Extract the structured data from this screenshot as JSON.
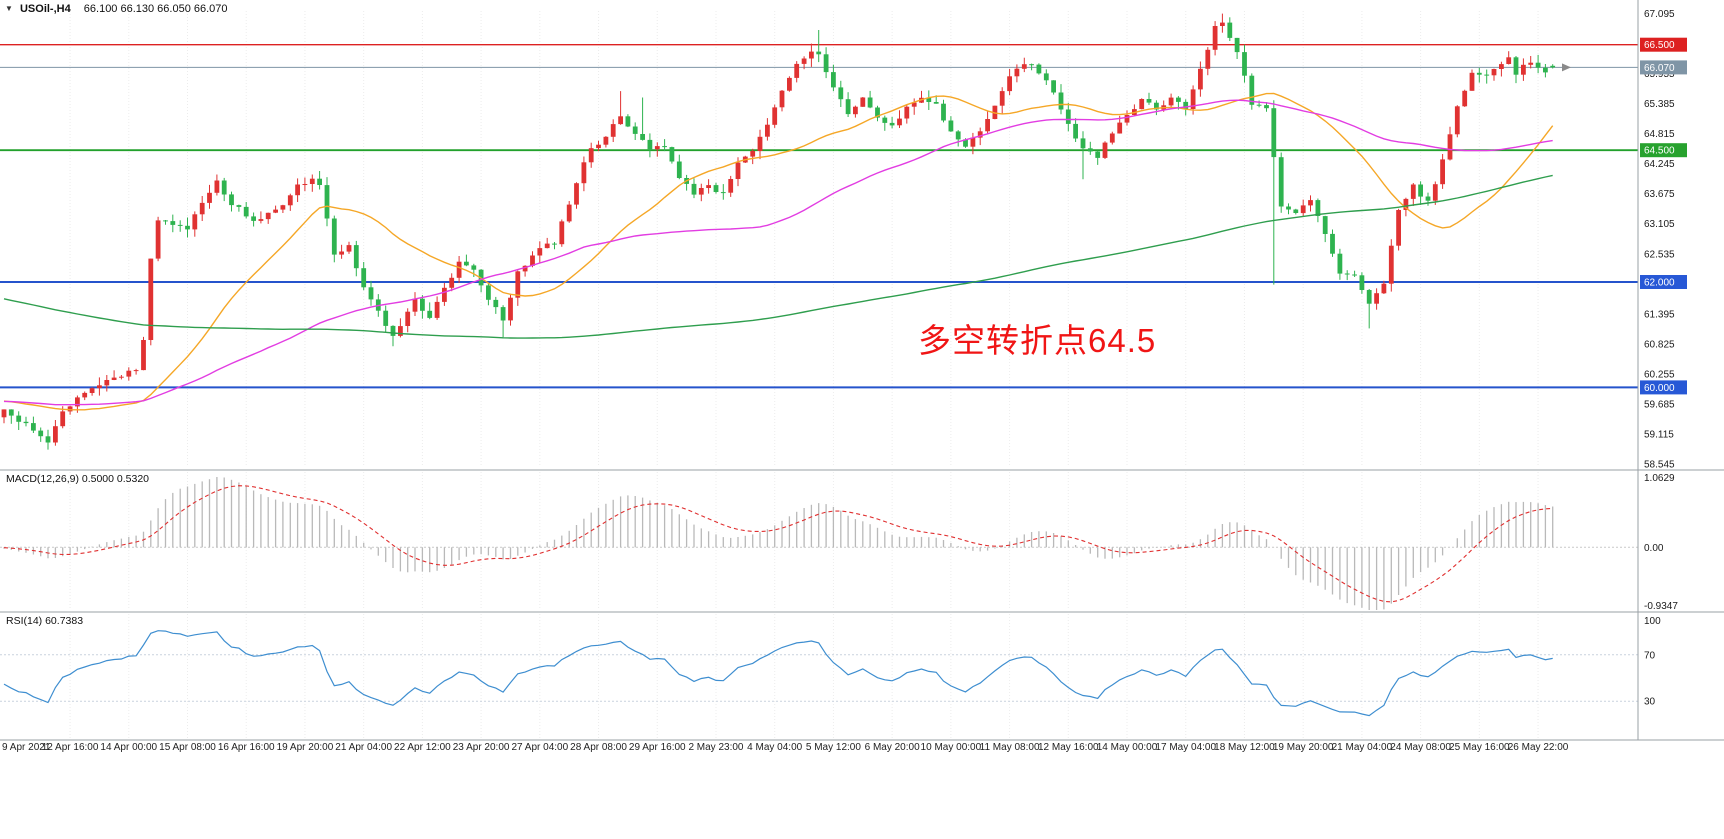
{
  "header": {
    "collapse_icon": "▼",
    "symbol": "USOil-,H4",
    "ohlc": "66.100 66.130 66.050 66.070"
  },
  "annotation": {
    "text": "多空转折点64.5",
    "color": "#f01515"
  },
  "panels": {
    "macd": {
      "title": "MACD(12,26,9) 0.5000 0.5320",
      "axis_labels": [
        "1.0629",
        "0.00",
        "-0.9347"
      ]
    },
    "rsi": {
      "title": "RSI(14) 60.7383",
      "axis_labels": [
        "100",
        "70",
        "30"
      ]
    }
  },
  "price_axis": {
    "tick_values": [
      67.095,
      66.525,
      65.955,
      65.385,
      64.815,
      64.245,
      63.675,
      63.105,
      62.535,
      61.965,
      61.395,
      60.825,
      60.255,
      59.685,
      59.115,
      58.545
    ],
    "special_labels": [
      {
        "label": "66.500",
        "value": 66.5,
        "bg": "#dd2121",
        "fg": "#ffffff"
      },
      {
        "label": "66.070",
        "value": 66.07,
        "bg": "#7f95a6",
        "fg": "#ffffff"
      },
      {
        "label": "64.500",
        "value": 64.5,
        "bg": "#27a22e",
        "fg": "#ffffff"
      },
      {
        "label": "62.000",
        "value": 62.0,
        "bg": "#2758d6",
        "fg": "#ffffff"
      },
      {
        "label": "60.000",
        "value": 60.0,
        "bg": "#2758d6",
        "fg": "#ffffff"
      }
    ]
  },
  "time_axis": {
    "labels": [
      "9 Apr 2021",
      "12 Apr 16:00",
      "14 Apr 00:00",
      "15 Apr 08:00",
      "16 Apr 16:00",
      "19 Apr 20:00",
      "21 Apr 04:00",
      "22 Apr 12:00",
      "23 Apr 20:00",
      "27 Apr 04:00",
      "28 Apr 08:00",
      "29 Apr 16:00",
      "2 May 23:00",
      "4 May 04:00",
      "5 May 12:00",
      "6 May 20:00",
      "10 May 00:00",
      "11 May 08:00",
      "12 May 16:00",
      "14 May 00:00",
      "17 May 04:00",
      "18 May 12:00",
      "19 May 20:00",
      "21 May 04:00",
      "24 May 08:00",
      "25 May 16:00",
      "26 May 22:00"
    ]
  },
  "colors": {
    "up": "#e03232",
    "down": "#2eb34f",
    "ma_fast": "#f5a727",
    "ma_mid": "#e23de2",
    "ma_slow": "#2f9e4e",
    "price_line": "#7f95a6",
    "macd_hist": "#b9b9b9",
    "macd_signal": "#e03030",
    "rsi_line": "#3e8ed0",
    "grid": "#ececec",
    "panel_border": "#9aa0a6",
    "axis_text": "#1a1a1a"
  },
  "chart_data": {
    "type": "candlestick",
    "symbol": "USOil",
    "timeframe": "H4",
    "title": "USOil-,H4",
    "current_ohlc": {
      "open": 66.1,
      "high": 66.13,
      "low": 66.05,
      "close": 66.07
    },
    "y_axis": {
      "min": 58.49,
      "max": 67.14,
      "tick_step": 0.57
    },
    "candle_count": 212,
    "close_path_anchors": [
      [
        0,
        59.55
      ],
      [
        3,
        59.3
      ],
      [
        6,
        58.95
      ],
      [
        8,
        59.5
      ],
      [
        10,
        59.85
      ],
      [
        13,
        60.05
      ],
      [
        16,
        60.2
      ],
      [
        18,
        60.35
      ],
      [
        19,
        60.9
      ],
      [
        20,
        62.4
      ],
      [
        21,
        63.15
      ],
      [
        23,
        63.1
      ],
      [
        25,
        62.95
      ],
      [
        27,
        63.55
      ],
      [
        29,
        63.9
      ],
      [
        31,
        63.5
      ],
      [
        34,
        63.15
      ],
      [
        37,
        63.35
      ],
      [
        40,
        63.8
      ],
      [
        42,
        64.0
      ],
      [
        43,
        63.85
      ],
      [
        45,
        62.5
      ],
      [
        47,
        62.7
      ],
      [
        49,
        61.9
      ],
      [
        51,
        61.45
      ],
      [
        53,
        60.95
      ],
      [
        56,
        61.65
      ],
      [
        58,
        61.35
      ],
      [
        62,
        62.35
      ],
      [
        64,
        62.25
      ],
      [
        66,
        61.7
      ],
      [
        68,
        61.25
      ],
      [
        70,
        62.2
      ],
      [
        73,
        62.65
      ],
      [
        75,
        62.75
      ],
      [
        77,
        63.5
      ],
      [
        79,
        64.3
      ],
      [
        80,
        64.5
      ],
      [
        82,
        64.8
      ],
      [
        84,
        65.1
      ],
      [
        86,
        64.8
      ],
      [
        88,
        64.55
      ],
      [
        90,
        64.6
      ],
      [
        92,
        63.95
      ],
      [
        94,
        63.7
      ],
      [
        96,
        63.85
      ],
      [
        98,
        63.65
      ],
      [
        100,
        64.3
      ],
      [
        102,
        64.5
      ],
      [
        104,
        64.95
      ],
      [
        106,
        65.6
      ],
      [
        108,
        66.1
      ],
      [
        110,
        66.35
      ],
      [
        111,
        66.3
      ],
      [
        113,
        65.7
      ],
      [
        115,
        65.2
      ],
      [
        117,
        65.5
      ],
      [
        119,
        65.1
      ],
      [
        121,
        64.95
      ],
      [
        123,
        65.3
      ],
      [
        125,
        65.5
      ],
      [
        127,
        65.35
      ],
      [
        129,
        64.85
      ],
      [
        131,
        64.55
      ],
      [
        133,
        64.9
      ],
      [
        135,
        65.3
      ],
      [
        137,
        65.9
      ],
      [
        139,
        66.15
      ],
      [
        141,
        66.0
      ],
      [
        143,
        65.6
      ],
      [
        145,
        65.0
      ],
      [
        147,
        64.5
      ],
      [
        149,
        64.35
      ],
      [
        151,
        64.85
      ],
      [
        153,
        65.2
      ],
      [
        155,
        65.45
      ],
      [
        157,
        65.3
      ],
      [
        159,
        65.5
      ],
      [
        161,
        65.3
      ],
      [
        163,
        66.0
      ],
      [
        165,
        66.85
      ],
      [
        166,
        66.9
      ],
      [
        168,
        66.4
      ],
      [
        170,
        65.4
      ],
      [
        172,
        65.3
      ],
      [
        174,
        63.4
      ],
      [
        176,
        63.3
      ],
      [
        178,
        63.55
      ],
      [
        180,
        62.9
      ],
      [
        182,
        62.15
      ],
      [
        184,
        62.1
      ],
      [
        186,
        61.55
      ],
      [
        188,
        61.95
      ],
      [
        190,
        63.4
      ],
      [
        192,
        63.8
      ],
      [
        194,
        63.5
      ],
      [
        196,
        64.3
      ],
      [
        198,
        65.3
      ],
      [
        200,
        66.0
      ],
      [
        202,
        65.9
      ],
      [
        204,
        66.15
      ],
      [
        205,
        66.3
      ],
      [
        206,
        65.95
      ],
      [
        208,
        66.2
      ],
      [
        210,
        66.0
      ],
      [
        211,
        66.07
      ]
    ],
    "wick_spikes": [
      {
        "i": 6,
        "low": 58.82
      },
      {
        "i": 53,
        "low": 60.78
      },
      {
        "i": 68,
        "low": 60.95
      },
      {
        "i": 84,
        "high": 65.62
      },
      {
        "i": 87,
        "high": 65.5
      },
      {
        "i": 111,
        "high": 66.78
      },
      {
        "i": 147,
        "low": 63.95
      },
      {
        "i": 166,
        "high": 67.09
      },
      {
        "i": 173,
        "low": 61.95
      },
      {
        "i": 186,
        "low": 61.12
      }
    ],
    "horizontal_lines": [
      {
        "value": 66.5,
        "color": "#dd2121",
        "width": 1.4
      },
      {
        "value": 64.5,
        "color": "#22a12c",
        "width": 1.8
      },
      {
        "value": 62.0,
        "color": "#2553cc",
        "width": 2
      },
      {
        "value": 60.0,
        "color": "#2553cc",
        "width": 2
      }
    ],
    "current_price_line": {
      "value": 66.07,
      "color": "#7f95a6"
    },
    "moving_averages": [
      {
        "name": "ma-fast-orange",
        "period": 24,
        "color": "#f5a727"
      },
      {
        "name": "ma-mid-magenta",
        "period": 60,
        "color": "#e23de2"
      },
      {
        "name": "ma-slow-green",
        "period": 200,
        "color": "#2f9e4e"
      }
    ],
    "indicators": {
      "macd": {
        "fast": 12,
        "slow": 26,
        "signal": 9,
        "display_values": [
          0.5,
          0.532
        ],
        "y_range": [
          -0.9347,
          1.0629
        ]
      },
      "rsi": {
        "period": 14,
        "value": 60.7383,
        "levels": [
          70,
          30
        ],
        "y_range": [
          0,
          100
        ]
      }
    },
    "prehistory": {
      "count": 220,
      "decline_from": 66.2,
      "decline_to": 59.7,
      "decline_len": 160,
      "flat": 59.7
    }
  }
}
